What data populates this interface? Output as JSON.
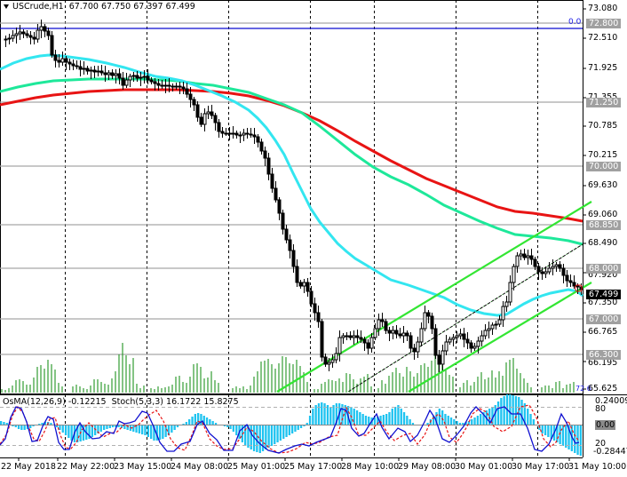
{
  "chart": {
    "symbol": "USCrude,H1",
    "ohlc": {
      "open": "67.700",
      "high": "67.750",
      "low": "67.397",
      "close": "67.499"
    },
    "fib_label": "0.0",
    "volume_label": "72 6"
  },
  "indicator": {
    "osma_label": "OsMA(12,26,9)",
    "osma_value": "-0.12215",
    "stoch_label": "Stoch(5,3,3)",
    "stoch_main": "16.1722",
    "stoch_signal": "15.8275",
    "axis": {
      "top": "0.24009",
      "level80": "80",
      "zero": "0.00",
      "level20": "20",
      "bottom": "-0.28447"
    }
  },
  "price_axis": {
    "labels": [
      "73.080",
      "72.510",
      "71.925",
      "71.355",
      "70.785",
      "70.215",
      "69.630",
      "69.060",
      "68.490",
      "67.920",
      "67.350",
      "66.765",
      "66.195",
      "65.625"
    ],
    "level_tags": [
      "72.800",
      "71.250",
      "70.000",
      "68.850",
      "68.000",
      "67.000",
      "66.300"
    ],
    "current_price": "67.499"
  },
  "time_axis": {
    "labels": [
      "22 May 2018",
      "22 May 22:00",
      "23 May 15:00",
      "24 May 08:00",
      "25 May 01:00",
      "25 May 17:00",
      "28 May 10:00",
      "29 May 08:00",
      "30 May 01:00",
      "30 May 17:00",
      "31 May 10:00"
    ]
  },
  "colors": {
    "ema50": "#33e6f0",
    "ema144": "#1ee89a",
    "ema200": "#e81414",
    "channel": "#33e633",
    "level_line": "#a8a8a8",
    "fib_line": "#0a0ad0",
    "volume": "#0a8a0a",
    "osma": "#1ec3f0",
    "stoch_main": "#1010d0",
    "stoch_signal": "#e81414"
  }
}
